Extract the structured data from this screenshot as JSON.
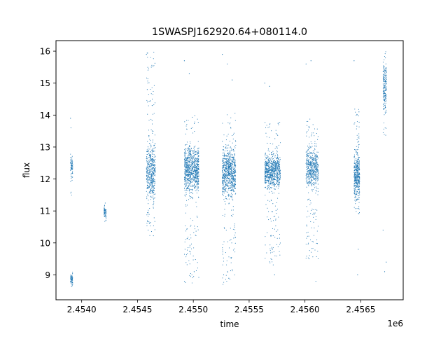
{
  "chart_data": {
    "type": "scatter",
    "title": "1SWASPJ162920.64+080114.0",
    "xlabel": "time",
    "ylabel": "flux",
    "x_offset_label": "1e6",
    "xlim": [
      2.45377,
      2.45688
    ],
    "ylim": [
      8.22,
      16.33
    ],
    "x_ticks": [
      2.454,
      2.4545,
      2.455,
      2.4555,
      2.456,
      2.4565
    ],
    "x_tick_labels": [
      "2.4540",
      "2.4545",
      "2.4550",
      "2.4555",
      "2.4560",
      "2.4565"
    ],
    "y_ticks": [
      9,
      10,
      11,
      12,
      13,
      14,
      15,
      16
    ],
    "y_tick_labels": [
      "9",
      "10",
      "11",
      "12",
      "13",
      "14",
      "15",
      "16"
    ],
    "grid": false,
    "marker_color": "#1f77b4",
    "clusters": [
      {
        "x": [
          2.4539,
          2.45392
        ],
        "core": [
          11.8,
          12.9
        ],
        "range": [
          11.4,
          13.2
        ],
        "outliers": [
          13.9,
          13.6
        ],
        "density": 4
      },
      {
        "x": [
          2.4539,
          2.45392
        ],
        "core": [
          8.65,
          9.05
        ],
        "range": [
          8.6,
          9.1
        ],
        "outliers": [],
        "density": 2
      },
      {
        "x": [
          2.4542,
          2.45422
        ],
        "core": [
          10.7,
          11.2
        ],
        "range": [
          10.65,
          11.3
        ],
        "outliers": [],
        "density": 2
      },
      {
        "x": [
          2.45458,
          2.45466
        ],
        "core": [
          11.0,
          13.4
        ],
        "range": [
          10.2,
          16.0
        ],
        "outliers": [
          15.9,
          15.5,
          14.8,
          14.3,
          10.4
        ],
        "density": 30
      },
      {
        "x": [
          2.45492,
          2.45505
        ],
        "core": [
          11.3,
          13.3
        ],
        "range": [
          8.7,
          14.0
        ],
        "outliers": [
          15.7,
          15.3,
          9.1,
          8.8
        ],
        "density": 34
      },
      {
        "x": [
          2.45526,
          2.45538
        ],
        "core": [
          11.1,
          13.3
        ],
        "range": [
          8.7,
          14.1
        ],
        "outliers": [
          15.9,
          15.6,
          15.1,
          9.0
        ],
        "density": 34
      },
      {
        "x": [
          2.45564,
          2.45578
        ],
        "core": [
          11.5,
          13.0
        ],
        "range": [
          9.3,
          13.8
        ],
        "outliers": [
          15.0,
          14.9,
          9.0
        ],
        "density": 28
      },
      {
        "x": [
          2.45601,
          2.45612
        ],
        "core": [
          11.5,
          13.2
        ],
        "range": [
          9.5,
          13.9
        ],
        "outliers": [
          15.6,
          15.7,
          8.8
        ],
        "density": 26
      },
      {
        "x": [
          2.45644,
          2.45649
        ],
        "core": [
          11.0,
          13.1
        ],
        "range": [
          10.9,
          14.3
        ],
        "outliers": [
          15.7,
          14.1,
          9.8,
          9.0
        ],
        "density": 40
      },
      {
        "x": [
          2.4567,
          2.45673
        ],
        "core": [
          13.9,
          15.9
        ],
        "range": [
          13.3,
          16.0
        ],
        "outliers": [
          10.4,
          9.1,
          9.4
        ],
        "density": 24
      }
    ]
  }
}
